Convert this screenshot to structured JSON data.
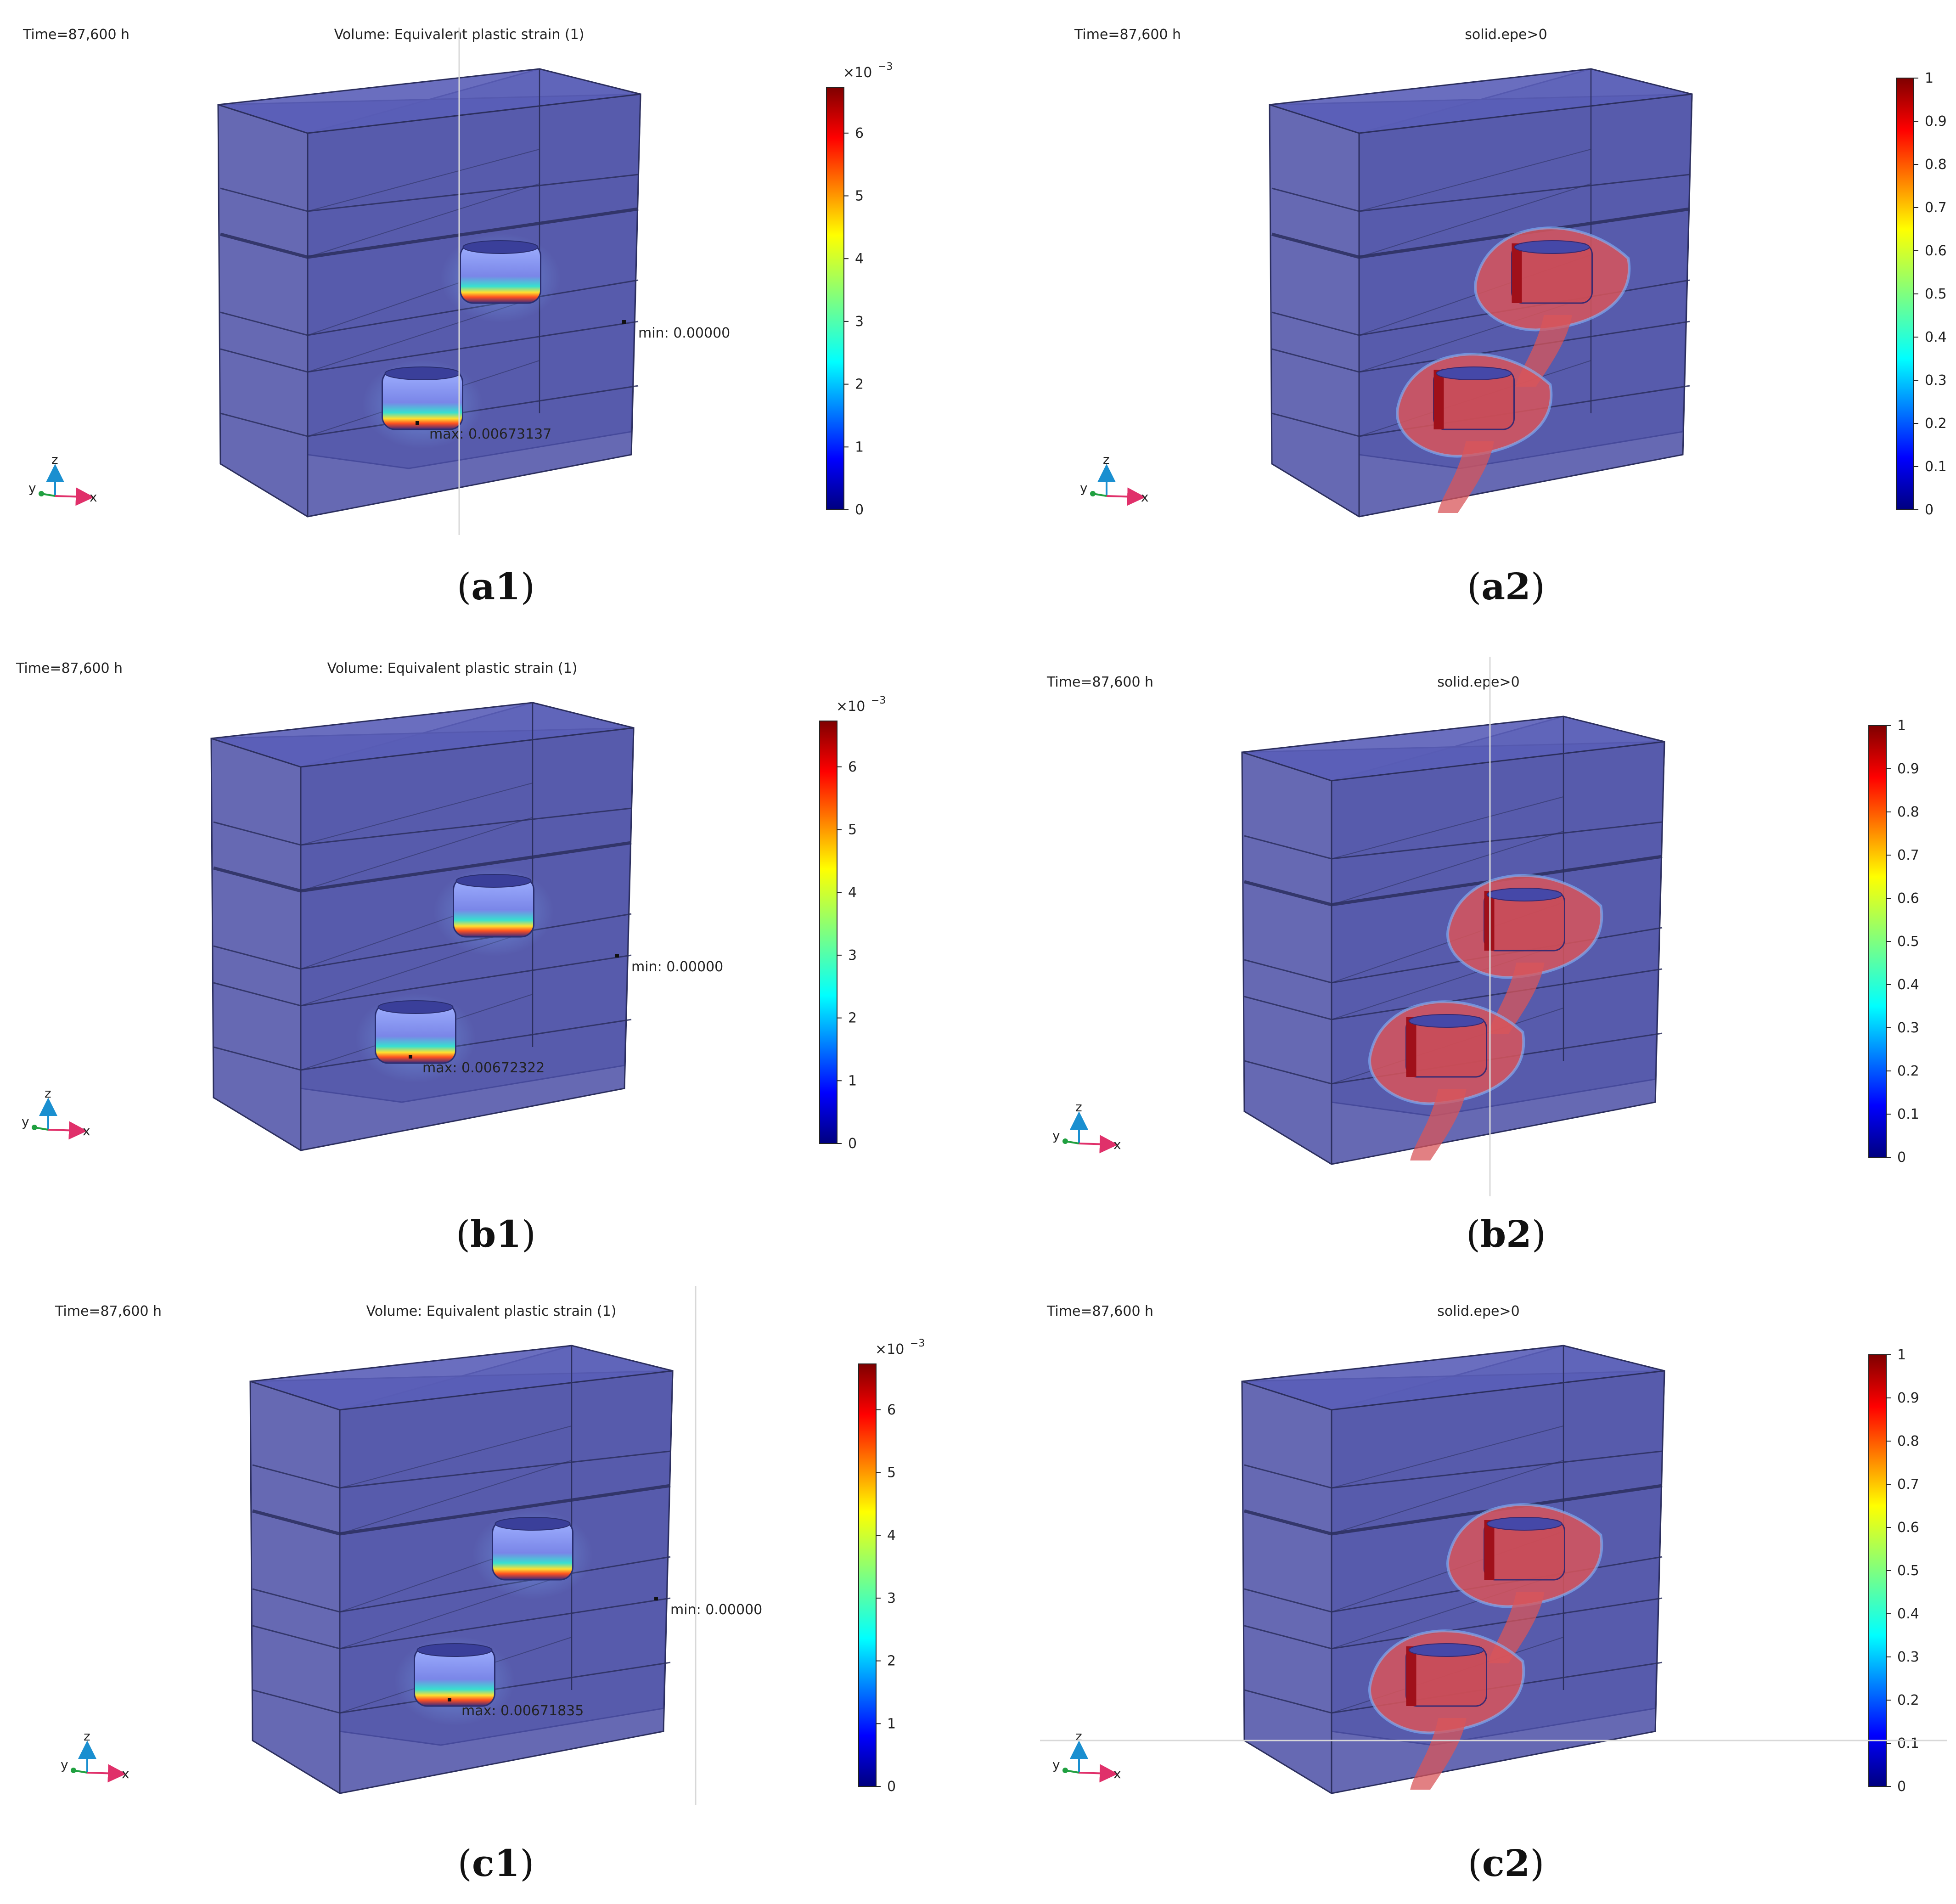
{
  "panels": [
    {
      "id": "a1",
      "time": "Time=87,600 h",
      "title": "Volume: Equivalent plastic strain (1)",
      "kind": "strain",
      "min_label": "min: 0.00000",
      "max_label": "max: 0.00673137",
      "caption_letter": "a1",
      "colorbar": {
        "multiplier": "×10",
        "exponent": "−3",
        "ticks": [
          "0",
          "1",
          "2",
          "3",
          "4",
          "5",
          "6"
        ]
      }
    },
    {
      "id": "a2",
      "time": "Time=87,600 h",
      "title": "solid.epe>0",
      "kind": "indicator",
      "caption_letter": "a2",
      "colorbar": {
        "ticks": [
          "0",
          "0.1",
          "0.2",
          "0.3",
          "0.4",
          "0.5",
          "0.6",
          "0.7",
          "0.8",
          "0.9",
          "1"
        ]
      }
    },
    {
      "id": "b1",
      "time": "Time=87,600 h",
      "title": "Volume: Equivalent plastic strain (1)",
      "kind": "strain",
      "min_label": "min: 0.00000",
      "max_label": "max: 0.00672322",
      "caption_letter": "b1",
      "colorbar": {
        "multiplier": "×10",
        "exponent": "−3",
        "ticks": [
          "0",
          "1",
          "2",
          "3",
          "4",
          "5",
          "6"
        ]
      }
    },
    {
      "id": "b2",
      "time": "Time=87,600 h",
      "title": "solid.epe>0",
      "kind": "indicator",
      "caption_letter": "b2",
      "colorbar": {
        "ticks": [
          "0",
          "0.1",
          "0.2",
          "0.3",
          "0.4",
          "0.5",
          "0.6",
          "0.7",
          "0.8",
          "0.9",
          "1"
        ]
      }
    },
    {
      "id": "c1",
      "time": "Time=87,600 h",
      "title": "Volume: Equivalent plastic strain (1)",
      "kind": "strain",
      "min_label": "min: 0.00000",
      "max_label": "max: 0.00671835",
      "caption_letter": "c1",
      "colorbar": {
        "multiplier": "×10",
        "exponent": "−3",
        "ticks": [
          "0",
          "1",
          "2",
          "3",
          "4",
          "5",
          "6"
        ]
      }
    },
    {
      "id": "c2",
      "time": "Time=87,600 h",
      "title": "solid.epe>0",
      "kind": "indicator",
      "caption_letter": "c2",
      "colorbar": {
        "ticks": [
          "0",
          "0.1",
          "0.2",
          "0.3",
          "0.4",
          "0.5",
          "0.6",
          "0.7",
          "0.8",
          "0.9",
          "1"
        ]
      }
    }
  ],
  "axes_labels": {
    "z": "z",
    "y": "y",
    "x": "x"
  },
  "colors": {
    "block": "#4b4fa6",
    "block_edge": "#2c2f5e",
    "plastic": "#d8555a",
    "jet_low": "#00007f",
    "jet_high": "#7f0000"
  }
}
